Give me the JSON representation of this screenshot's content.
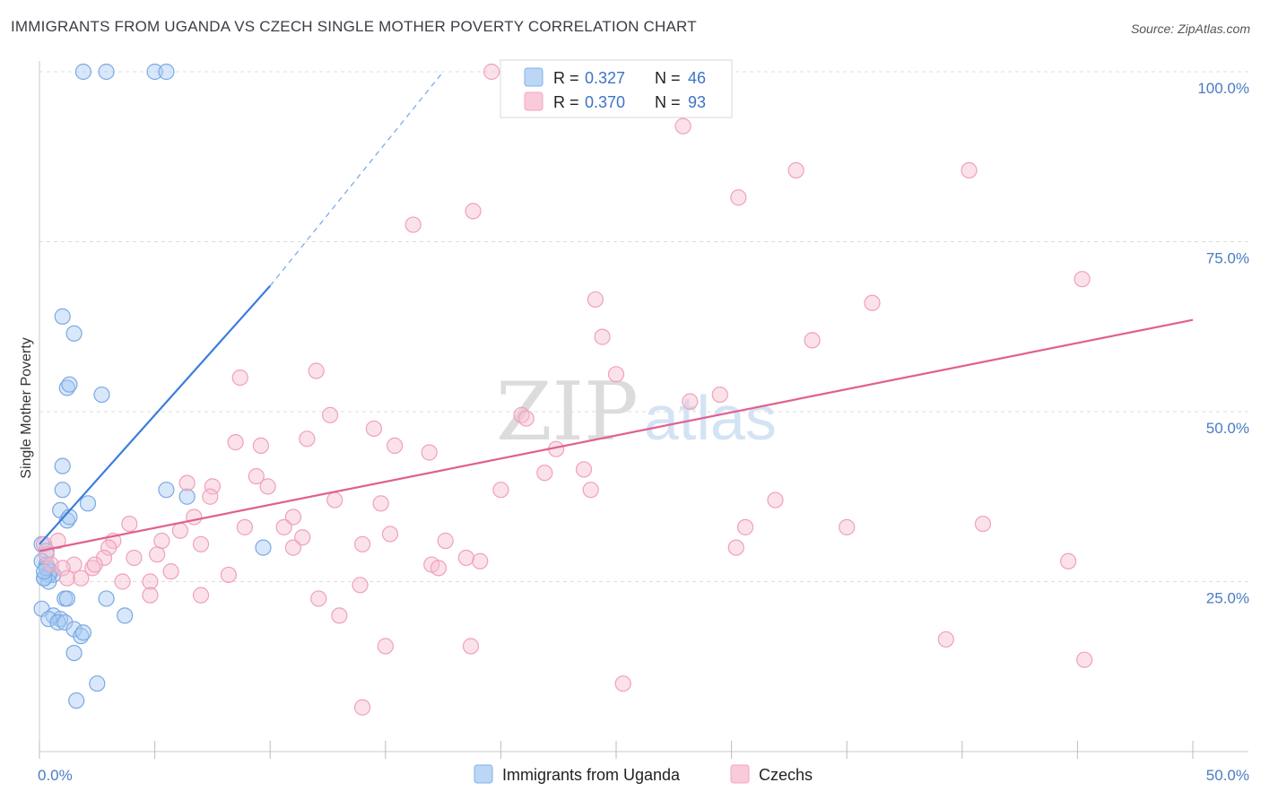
{
  "title": "IMMIGRANTS FROM UGANDA VS CZECH SINGLE MOTHER POVERTY CORRELATION CHART",
  "source": "Source: ZipAtlas.com",
  "watermark": {
    "zip": "ZIP",
    "atlas": "atlas"
  },
  "legend": {
    "r_label": "R =",
    "n_label": "N =",
    "items": [
      {
        "r": "0.327",
        "n": "46",
        "color": "#7fb1ea"
      },
      {
        "r": "0.370",
        "n": "93",
        "color": "#f3a6bf"
      }
    ]
  },
  "chart_data": {
    "type": "scatter",
    "title": "IMMIGRANTS FROM UGANDA VS CZECH SINGLE MOTHER POVERTY CORRELATION CHART",
    "xlabel": "",
    "ylabel": "Single Mother Poverty",
    "xlim": [
      0,
      50
    ],
    "ylim": [
      0,
      105
    ],
    "x_tick_labels": [
      {
        "value": 0,
        "label": "0.0%"
      },
      {
        "value": 50,
        "label": "50.0%"
      }
    ],
    "y_tick_labels": [
      {
        "value": 25,
        "label": "25.0%"
      },
      {
        "value": 50,
        "label": "50.0%"
      },
      {
        "value": 75,
        "label": "75.0%"
      },
      {
        "value": 100,
        "label": "100.0%"
      }
    ],
    "series": [
      {
        "name": "Immigrants from Uganda",
        "color": "#3b7ddd",
        "fill": "#a9c9f1",
        "trend": {
          "x0": 0,
          "y0": 30.5,
          "x1": 10,
          "y1": 68.5,
          "dash_to_x": 17.5,
          "dash_to_y": 100
        },
        "points": [
          [
            1.9,
            100
          ],
          [
            2.9,
            100
          ],
          [
            5.0,
            100
          ],
          [
            5.5,
            100
          ],
          [
            1.0,
            64
          ],
          [
            1.5,
            61.5
          ],
          [
            1.2,
            53.5
          ],
          [
            1.3,
            54
          ],
          [
            2.7,
            52.5
          ],
          [
            1.0,
            42
          ],
          [
            1.0,
            38.5
          ],
          [
            0.9,
            35.5
          ],
          [
            2.1,
            36.5
          ],
          [
            1.2,
            34
          ],
          [
            1.3,
            34.5
          ],
          [
            5.5,
            38.5
          ],
          [
            6.4,
            37.5
          ],
          [
            9.7,
            30
          ],
          [
            0.1,
            30.5
          ],
          [
            0.3,
            29.5
          ],
          [
            0.1,
            28
          ],
          [
            0.3,
            27.5
          ],
          [
            0.5,
            26.5
          ],
          [
            0.6,
            26
          ],
          [
            0.4,
            26
          ],
          [
            0.2,
            25.5
          ],
          [
            0.4,
            25
          ],
          [
            0.1,
            21
          ],
          [
            0.6,
            20
          ],
          [
            0.9,
            19.5
          ],
          [
            0.4,
            19.5
          ],
          [
            0.8,
            19
          ],
          [
            1.1,
            19
          ],
          [
            1.1,
            22.5
          ],
          [
            1.2,
            22.5
          ],
          [
            2.9,
            22.5
          ],
          [
            3.7,
            20
          ],
          [
            1.5,
            18
          ],
          [
            1.8,
            17
          ],
          [
            1.9,
            17.5
          ],
          [
            1.5,
            14.5
          ],
          [
            2.5,
            10
          ],
          [
            1.6,
            7.5
          ],
          [
            0.2,
            25.5
          ],
          [
            0.3,
            27
          ],
          [
            0.2,
            26.5
          ]
        ]
      },
      {
        "name": "Czechs",
        "color": "#e0608f",
        "fill": "#f7bfd1",
        "trend": {
          "x0": 0,
          "y0": 29.5,
          "x1": 50,
          "y1": 63.5
        },
        "points": [
          [
            19.6,
            100
          ],
          [
            20.4,
            100
          ],
          [
            23.7,
            100
          ],
          [
            27.9,
            92
          ],
          [
            32.8,
            85.5
          ],
          [
            40.3,
            85.5
          ],
          [
            30.3,
            81.5
          ],
          [
            18.8,
            79.5
          ],
          [
            16.2,
            77.5
          ],
          [
            45.2,
            69.5
          ],
          [
            24.1,
            66.5
          ],
          [
            36.1,
            66
          ],
          [
            24.4,
            61
          ],
          [
            33.5,
            60.5
          ],
          [
            12.0,
            56
          ],
          [
            8.7,
            55
          ],
          [
            25.0,
            55.5
          ],
          [
            28.2,
            51.5
          ],
          [
            29.5,
            52.5
          ],
          [
            12.6,
            49.5
          ],
          [
            20.9,
            49.5
          ],
          [
            21.1,
            49
          ],
          [
            14.5,
            47.5
          ],
          [
            11.6,
            46
          ],
          [
            8.5,
            45.5
          ],
          [
            9.6,
            45
          ],
          [
            15.4,
            45
          ],
          [
            16.9,
            44
          ],
          [
            22.4,
            44.5
          ],
          [
            23.6,
            41.5
          ],
          [
            21.9,
            41
          ],
          [
            9.4,
            40.5
          ],
          [
            6.4,
            39.5
          ],
          [
            7.5,
            39
          ],
          [
            9.9,
            39
          ],
          [
            20.0,
            38.5
          ],
          [
            7.4,
            37.5
          ],
          [
            12.8,
            37
          ],
          [
            23.9,
            38.5
          ],
          [
            14.8,
            36.5
          ],
          [
            31.9,
            37
          ],
          [
            6.7,
            34.5
          ],
          [
            11.0,
            34.5
          ],
          [
            3.9,
            33.5
          ],
          [
            8.9,
            33
          ],
          [
            10.6,
            33
          ],
          [
            40.9,
            33.5
          ],
          [
            30.6,
            33
          ],
          [
            35.0,
            33
          ],
          [
            6.1,
            32.5
          ],
          [
            5.3,
            31
          ],
          [
            7.0,
            30.5
          ],
          [
            11.4,
            31.5
          ],
          [
            14.0,
            30.5
          ],
          [
            15.2,
            32
          ],
          [
            17.6,
            31
          ],
          [
            30.2,
            30
          ],
          [
            11.0,
            30
          ],
          [
            3.2,
            31
          ],
          [
            3.0,
            30
          ],
          [
            0.8,
            31
          ],
          [
            0.2,
            30.5
          ],
          [
            0.3,
            29
          ],
          [
            0.5,
            27.5
          ],
          [
            1.5,
            27.5
          ],
          [
            2.3,
            27
          ],
          [
            2.8,
            28.5
          ],
          [
            4.1,
            28.5
          ],
          [
            5.1,
            29
          ],
          [
            17.0,
            27.5
          ],
          [
            17.3,
            27
          ],
          [
            19.1,
            28
          ],
          [
            18.5,
            28.5
          ],
          [
            1.0,
            27
          ],
          [
            1.2,
            25.5
          ],
          [
            1.8,
            25.5
          ],
          [
            2.4,
            27.5
          ],
          [
            5.7,
            26.5
          ],
          [
            8.2,
            26
          ],
          [
            3.6,
            25
          ],
          [
            4.8,
            25
          ],
          [
            13.9,
            24.5
          ],
          [
            4.8,
            23
          ],
          [
            7.0,
            23
          ],
          [
            12.1,
            22.5
          ],
          [
            13.0,
            20
          ],
          [
            44.6,
            28
          ],
          [
            15.0,
            15.5
          ],
          [
            18.7,
            15.5
          ],
          [
            39.3,
            16.5
          ],
          [
            45.3,
            13.5
          ],
          [
            25.3,
            10
          ],
          [
            14.0,
            6.5
          ]
        ]
      }
    ]
  }
}
